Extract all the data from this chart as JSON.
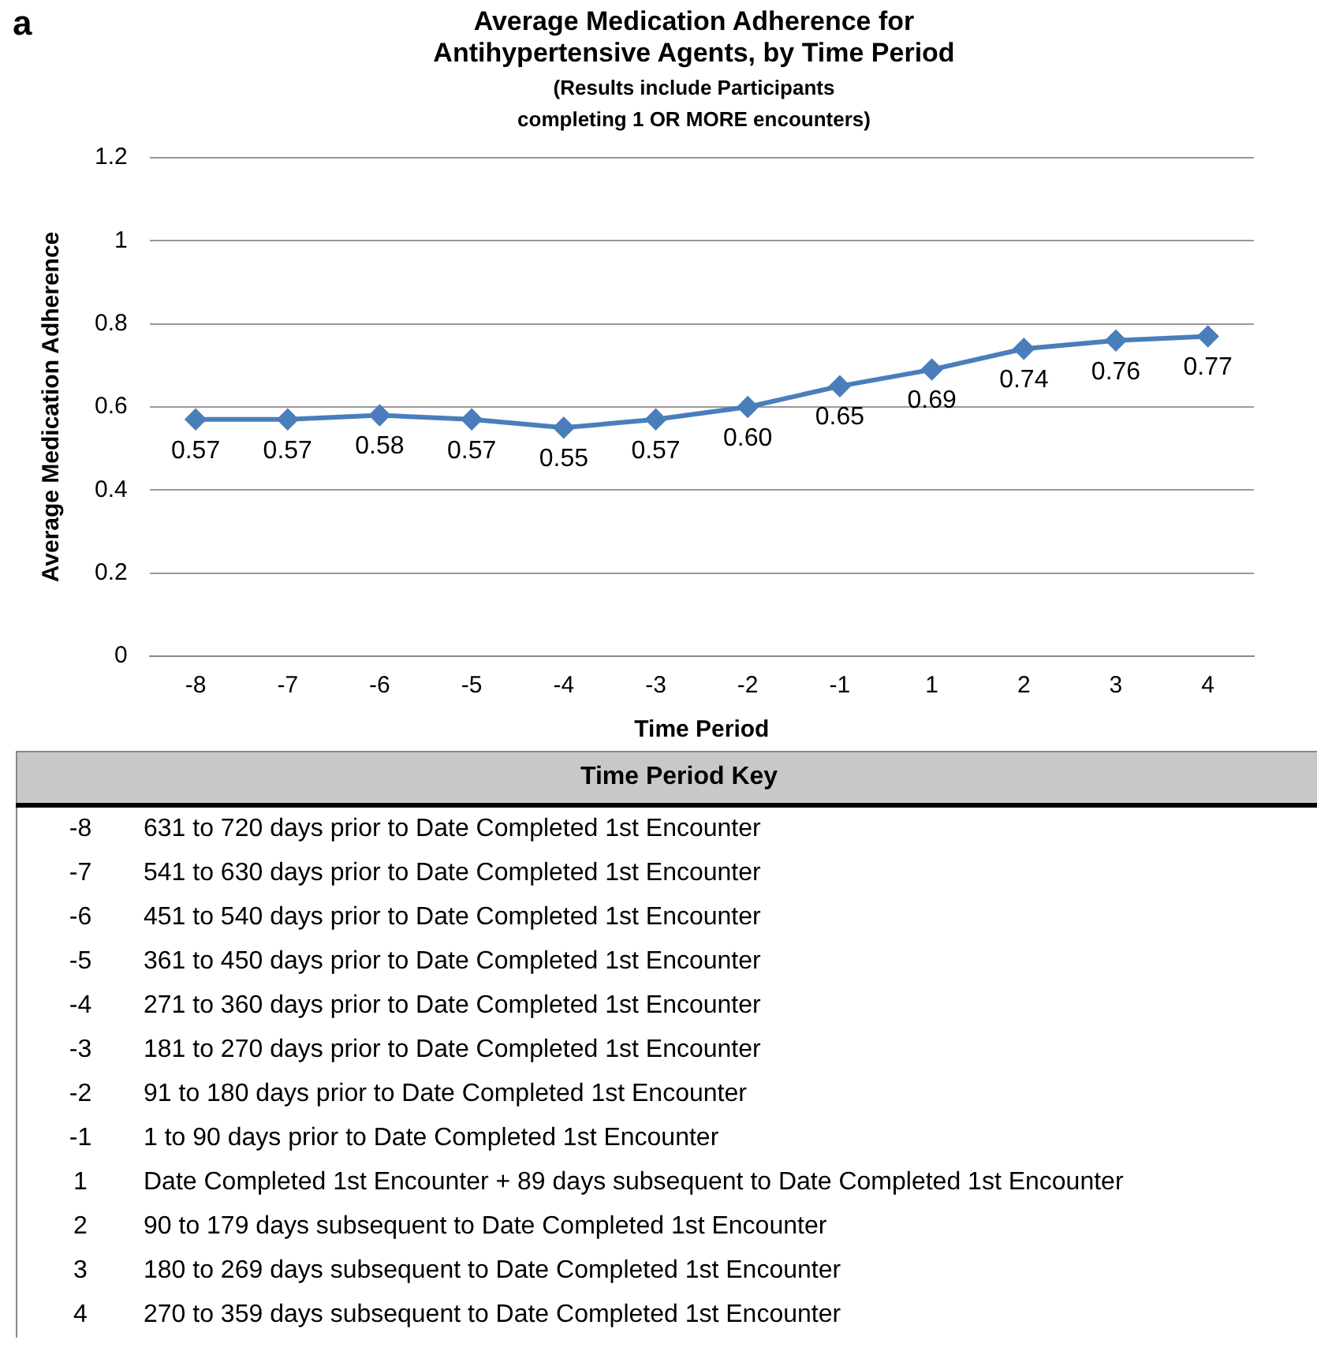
{
  "chart_data": {
    "type": "line",
    "title": "Average Medication Adherence for Antihypertensive Agents, by Time Period",
    "subtitle": "(Results include Participants completing  1 OR MORE encounters)",
    "xlabel": "Time Period",
    "ylabel": "Average Medication Adherence",
    "categories": [
      "-8",
      "-7",
      "-6",
      "-5",
      "-4",
      "-3",
      "-2",
      "-1",
      "1",
      "2",
      "3",
      "4"
    ],
    "series": [
      {
        "color": "#4a7ebb",
        "values": [
          0.57,
          0.57,
          0.58,
          0.57,
          0.55,
          0.57,
          0.6,
          0.65,
          0.69,
          0.74,
          0.76,
          0.77
        ],
        "value_labels": [
          "0.57",
          "0.57",
          "0.58",
          "0.57",
          "0.55",
          "0.57",
          "0.60",
          "0.65",
          "0.69",
          "0.74",
          "0.76",
          "0.77"
        ]
      }
    ],
    "ylim": [
      0,
      1.2
    ],
    "yticks": [
      0,
      0.2,
      0.4,
      0.6,
      0.8,
      1,
      1.2
    ],
    "grid": "y",
    "legend": false,
    "marker": "diamond",
    "line_style": "solid",
    "annotations": [
      "a",
      "Time Period Key",
      "-8\t631 to 720 days prior to Date Completed 1st Encounter",
      "-7\t541 to 630 days prior to Date Completed 1st Encounter",
      "-6\t451 to 540 days prior to Date Completed 1st Encounter",
      "-5\t361 to 450 days prior to Date Completed 1st Encounter",
      "-4\t271 to 360 days prior to Date Completed 1st Encounter",
      "-3\t181 to 270 days prior to Date Completed 1st Encounter",
      "-2\t91 to 180 days prior to Date Completed 1st Encounter",
      "-1\t1 to 90 days prior to Date Completed 1st Encounter",
      "1\tDate Completed 1st Encounter + 89 days subsequent to Date Completed 1st Encounter",
      "2\t90 to 179 days subsequent to Date Completed 1st Encounter",
      "3\t180 to 269 days subsequent to Date Completed 1st Encounter",
      "4\t270 to 359 days subsequent to Date Completed 1st Encounter"
    ]
  }
}
